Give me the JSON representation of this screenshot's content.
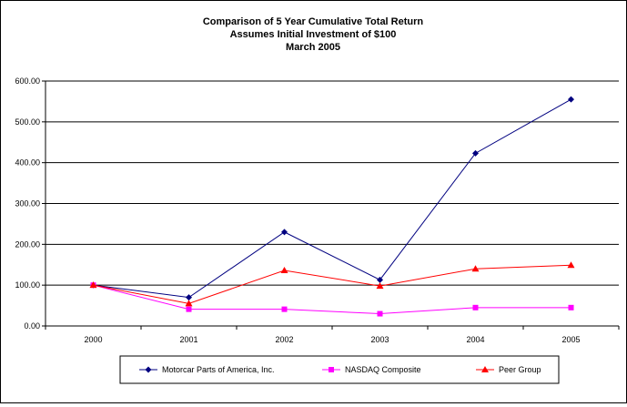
{
  "chart_data": {
    "type": "line",
    "title_lines": [
      "Comparison of 5 Year Cumulative Total Return",
      "Assumes Initial Investment of $100",
      "March 2005"
    ],
    "categories": [
      "2000",
      "2001",
      "2002",
      "2003",
      "2004",
      "2005"
    ],
    "ylim": [
      0,
      600
    ],
    "yticks": [
      0,
      100,
      200,
      300,
      400,
      500,
      600
    ],
    "ytick_labels": [
      "0.00",
      "100.00",
      "200.00",
      "300.00",
      "400.00",
      "500.00",
      "600.00"
    ],
    "grid": "horizontal",
    "legend_position": "bottom",
    "series": [
      {
        "name": "Motorcar Parts of America, Inc.",
        "color": "#000080",
        "marker": "diamond",
        "values": [
          100,
          70,
          230,
          113,
          423,
          555
        ]
      },
      {
        "name": "NASDAQ Composite",
        "color": "#FF00FF",
        "marker": "square",
        "values": [
          100,
          41,
          41,
          30,
          45,
          45
        ]
      },
      {
        "name": "Peer Group",
        "color": "#FF0000",
        "marker": "triangle",
        "values": [
          100,
          55,
          136,
          98,
          140,
          149
        ]
      }
    ]
  }
}
